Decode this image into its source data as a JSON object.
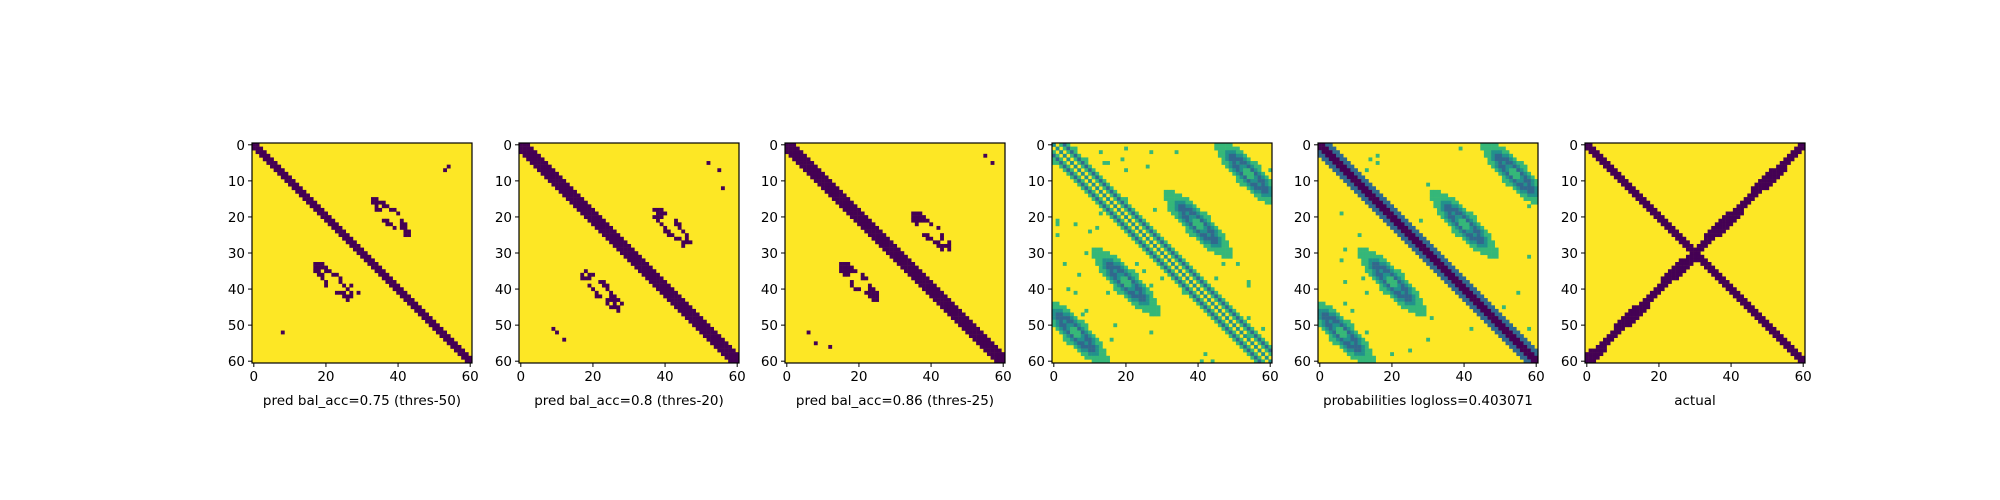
{
  "chart_data": [
    {
      "type": "heatmap",
      "variant": "binary",
      "xlabel": "pred bal_acc=0.75 (thres-50)",
      "grid_size": 61,
      "xlim": [
        0,
        60
      ],
      "ylim": [
        0,
        60
      ],
      "xticks": [
        0,
        20,
        40,
        60
      ],
      "yticks": [
        0,
        10,
        20,
        30,
        40,
        50,
        60
      ],
      "features": {
        "diagonal_halfwidth": 1.6,
        "anti_blobs": [
          {
            "r": 20,
            "c": 38
          },
          {
            "r": 38,
            "c": 22
          }
        ],
        "speckles": [
          [
            6,
            54
          ],
          [
            7,
            53
          ],
          [
            52,
            8
          ],
          [
            41,
            29
          ],
          [
            39,
            27
          ]
        ]
      }
    },
    {
      "type": "heatmap",
      "variant": "binary",
      "xlabel": "pred bal_acc=0.8 (thres-20)",
      "grid_size": 61,
      "xlim": [
        0,
        60
      ],
      "ylim": [
        0,
        60
      ],
      "xticks": [
        0,
        20,
        40,
        60
      ],
      "yticks": [
        0,
        10,
        20,
        30,
        40,
        50,
        60
      ],
      "features": {
        "diagonal_halfwidth": 2.0,
        "anti_blobs": [
          {
            "r": 23,
            "c": 42
          },
          {
            "r": 40,
            "c": 22
          }
        ],
        "speckles": [
          [
            5,
            52
          ],
          [
            7,
            55
          ],
          [
            12,
            56
          ],
          [
            51,
            9
          ],
          [
            52,
            10
          ],
          [
            54,
            12
          ],
          [
            44,
            28
          ],
          [
            46,
            27
          ]
        ]
      }
    },
    {
      "type": "heatmap",
      "variant": "binary",
      "xlabel": "pred bal_acc=0.86 (thres-25)",
      "grid_size": 61,
      "xlim": [
        0,
        60
      ],
      "ylim": [
        0,
        60
      ],
      "xticks": [
        0,
        20,
        40,
        60
      ],
      "yticks": [
        0,
        10,
        20,
        30,
        40,
        50,
        60
      ],
      "features": {
        "diagonal_halfwidth": 2.4,
        "anti_blobs": [
          {
            "r": 24,
            "c": 40
          },
          {
            "r": 38,
            "c": 20
          }
        ],
        "speckles": [
          [
            3,
            55
          ],
          [
            5,
            57
          ],
          [
            52,
            6
          ],
          [
            55,
            8
          ],
          [
            56,
            12
          ]
        ]
      }
    },
    {
      "type": "heatmap",
      "variant": "probability",
      "xlabel": "",
      "grid_size": 61,
      "xlim": [
        0,
        60
      ],
      "ylim": [
        0,
        60
      ],
      "xticks": [
        0,
        20,
        40,
        60
      ],
      "yticks": [
        0,
        10,
        20,
        30,
        40,
        50,
        60
      ],
      "features": {
        "offset_diagonals": [
          -3,
          3
        ],
        "anti_blobs": [
          {
            "r": 22,
            "c": 40
          },
          {
            "r": 38,
            "c": 20
          },
          {
            "r": 52,
            "c": 6
          },
          {
            "r": 8,
            "c": 54
          }
        ]
      }
    },
    {
      "type": "heatmap",
      "variant": "probability",
      "xlabel": "probabilities logloss=0.403071",
      "grid_size": 61,
      "xlim": [
        0,
        60
      ],
      "ylim": [
        0,
        60
      ],
      "xticks": [
        0,
        20,
        40,
        60
      ],
      "yticks": [
        0,
        10,
        20,
        30,
        40,
        50,
        60
      ],
      "features": {
        "diagonal_halfwidth": 1.8,
        "anti_blobs": [
          {
            "r": 22,
            "c": 40
          },
          {
            "r": 38,
            "c": 20
          },
          {
            "r": 52,
            "c": 6
          },
          {
            "r": 8,
            "c": 54
          }
        ]
      }
    },
    {
      "type": "heatmap",
      "variant": "binary",
      "xlabel": "actual",
      "grid_size": 61,
      "xlim": [
        0,
        60
      ],
      "ylim": [
        0,
        60
      ],
      "xticks": [
        0,
        20,
        40,
        60
      ],
      "yticks": [
        0,
        10,
        20,
        30,
        40,
        50,
        60
      ],
      "features": {
        "diagonal_halfwidth": 1.8,
        "anti_diagonal_halfwidth": 1.4
      }
    }
  ],
  "colors": {
    "low": "#440154",
    "mid_low": "#31688e",
    "mid": "#21918c",
    "mid_high": "#35b779",
    "high": "#fde725"
  }
}
